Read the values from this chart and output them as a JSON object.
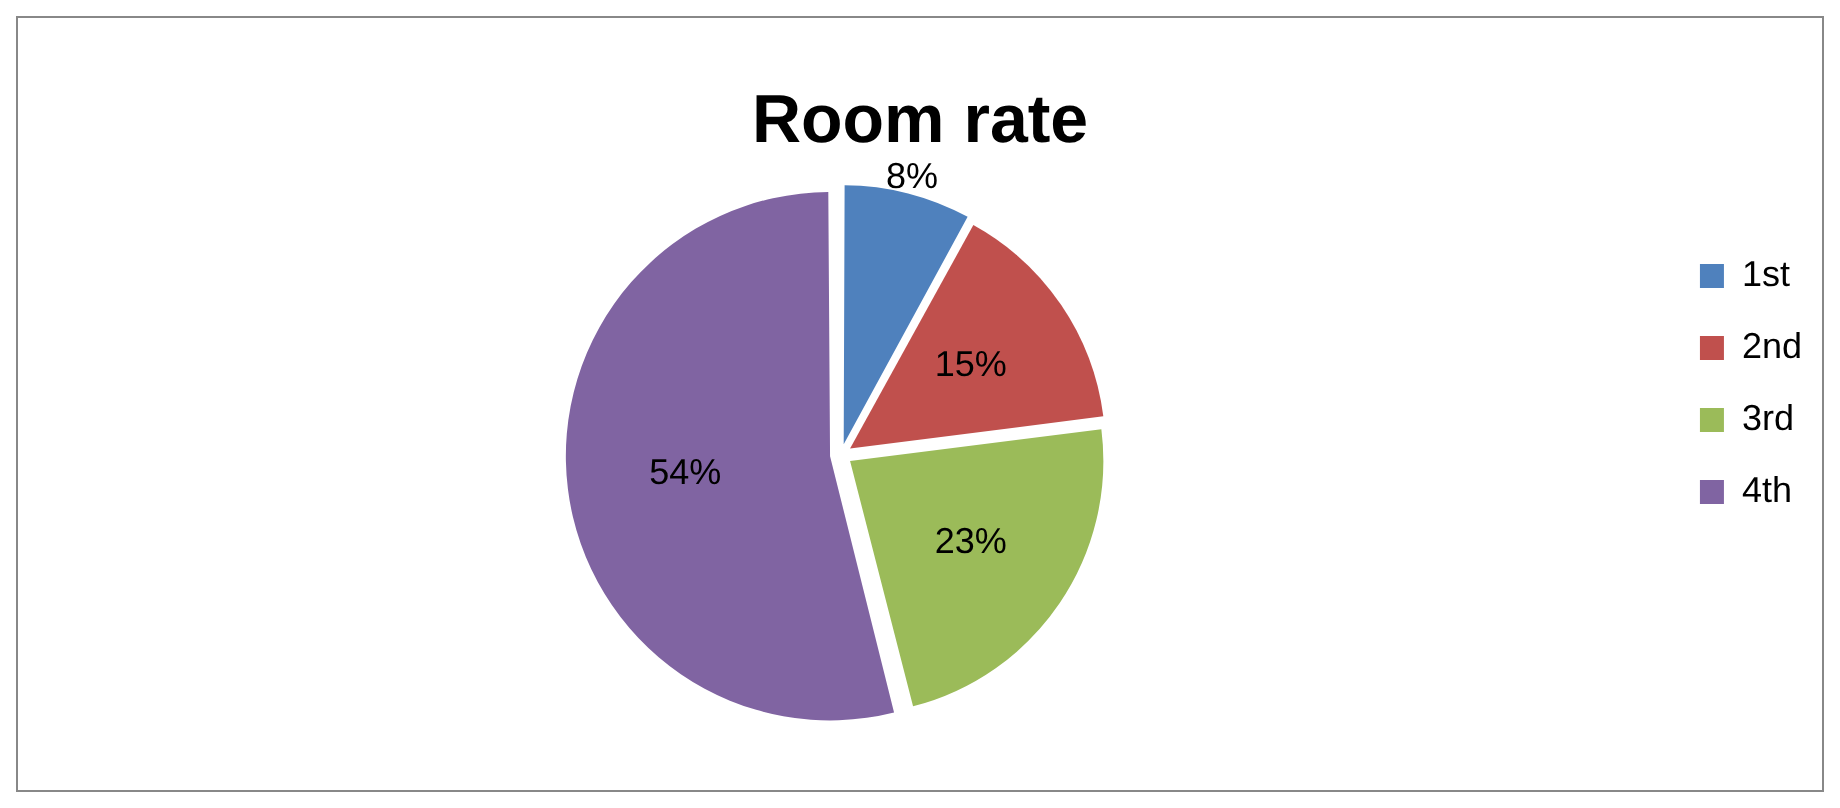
{
  "chart_data": {
    "type": "pie",
    "title": "Room rate",
    "categories": [
      "1st",
      "2nd",
      "3rd",
      "4th"
    ],
    "values": [
      8,
      15,
      23,
      54
    ],
    "colors": [
      "#4f81bd",
      "#c0504d",
      "#9bbb59",
      "#8064a2"
    ],
    "value_labels": [
      "8%",
      "15%",
      "23%",
      "54%"
    ],
    "legend": "right"
  }
}
